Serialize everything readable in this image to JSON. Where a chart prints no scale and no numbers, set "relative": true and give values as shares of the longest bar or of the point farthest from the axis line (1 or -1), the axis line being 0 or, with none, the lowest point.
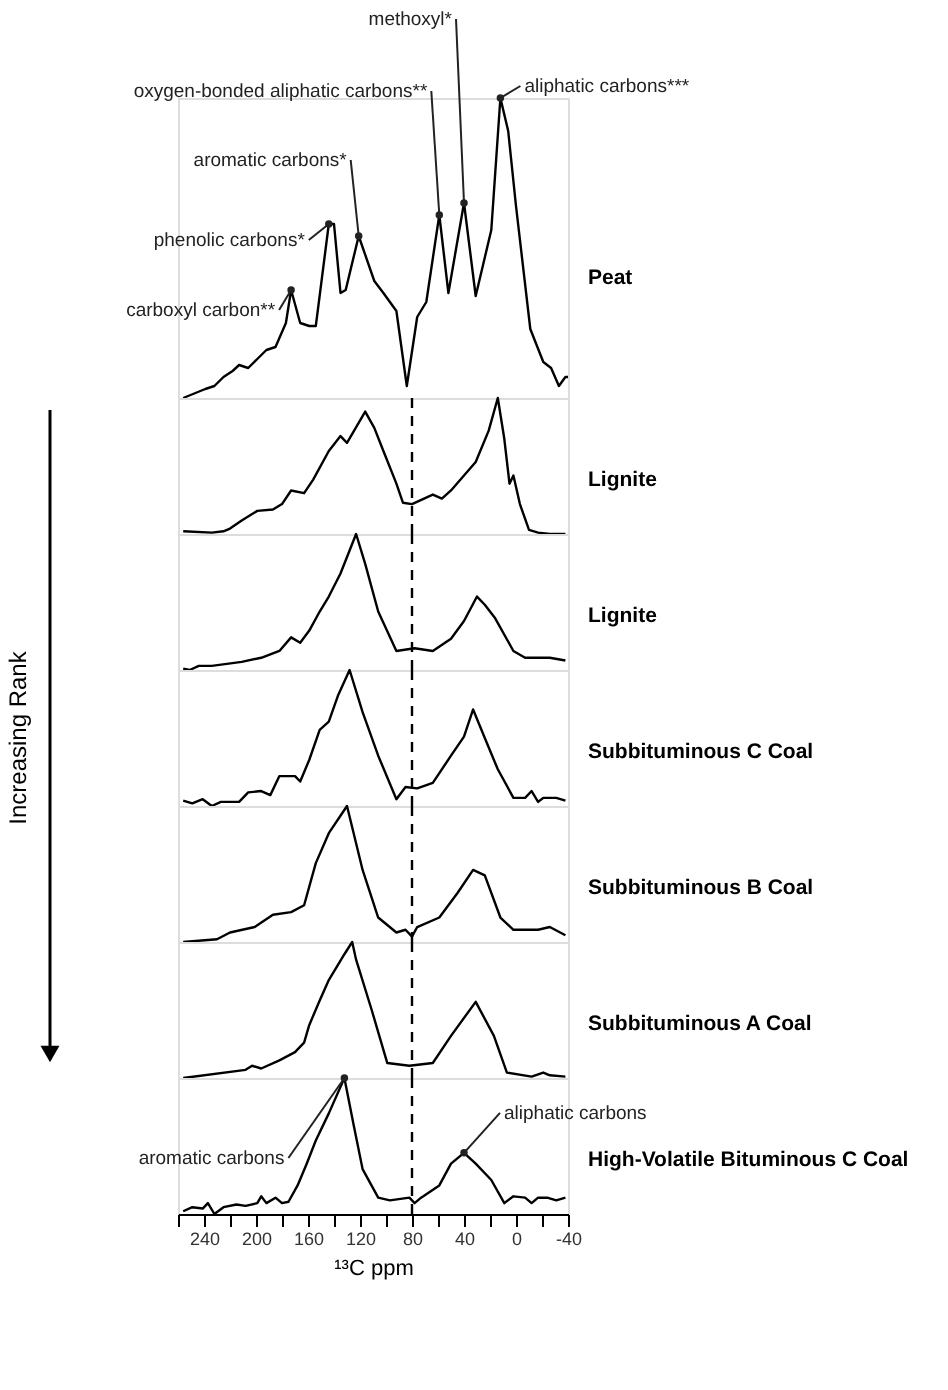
{
  "chart_data": [
    {
      "type": "line",
      "relative": true,
      "xlim": [
        260,
        -40
      ],
      "tick_labels": false,
      "x": [
        256,
        239,
        232,
        225,
        218,
        213,
        206,
        199,
        192,
        185,
        177,
        173,
        166,
        159,
        154,
        144,
        140,
        135,
        131,
        121,
        109,
        102,
        92,
        84,
        76,
        69,
        59,
        52,
        40,
        31,
        19,
        12,
        6,
        0,
        -11,
        -21,
        -27,
        -33,
        -38,
        -40
      ],
      "series": [
        {
          "name": "Peat",
          "color": "#000000",
          "values": [
            0,
            0.03,
            0.04,
            0.07,
            0.09,
            0.11,
            0.1,
            0.13,
            0.16,
            0.17,
            0.25,
            0.36,
            0.25,
            0.24,
            0.24,
            0.58,
            0.58,
            0.35,
            0.36,
            0.54,
            0.39,
            0.35,
            0.29,
            0.04,
            0.27,
            0.32,
            0.61,
            0.35,
            0.65,
            0.34,
            0.56,
            1,
            0.89,
            0.64,
            0.23,
            0.12,
            0.1,
            0.04,
            0.07,
            0.07
          ]
        }
      ],
      "annotations": [
        {
          "text": "carboxyl carbon**",
          "x": 173,
          "y": 0.36
        },
        {
          "text": "phenolic carbons*",
          "x": 144,
          "y": 0.58
        },
        {
          "text": "aromatic carbons*",
          "x": 121,
          "y": 0.54
        },
        {
          "text": "oxygen-bonded aliphatic carbons**",
          "x": 59,
          "y": 0.61
        },
        {
          "text": "methoxyl*",
          "x": 40,
          "y": 0.65
        },
        {
          "text": "aliphatic carbons***",
          "x": 12,
          "y": 1
        }
      ]
    },
    {
      "type": "line",
      "relative": true,
      "xlim": [
        260,
        -40
      ],
      "tick_labels": false,
      "x": [
        256,
        234,
        225,
        220,
        211,
        199,
        187,
        180,
        173,
        163,
        156,
        144,
        135,
        130,
        116,
        109,
        102,
        92,
        87,
        80,
        64,
        57,
        50,
        40,
        31,
        21,
        14,
        9,
        5,
        2,
        -3,
        -10,
        -17,
        -26,
        -38
      ],
      "series": [
        {
          "name": "Lignite",
          "color": "#000000",
          "values": [
            0.02,
            0.01,
            0.02,
            0.04,
            0.1,
            0.17,
            0.18,
            0.22,
            0.32,
            0.3,
            0.4,
            0.61,
            0.72,
            0.67,
            0.9,
            0.78,
            0.61,
            0.37,
            0.23,
            0.22,
            0.29,
            0.26,
            0.32,
            0.43,
            0.53,
            0.76,
            1,
            0.7,
            0.37,
            0.43,
            0.22,
            0.03,
            0.01,
            0,
            0
          ]
        }
      ],
      "ref_lines": [
        {
          "axis": "x",
          "value": 80,
          "color": "#000000",
          "line_style": "dashed"
        }
      ]
    },
    {
      "type": "line",
      "relative": true,
      "xlim": [
        260,
        -40
      ],
      "tick_labels": false,
      "x": [
        256,
        251,
        244,
        234,
        211,
        196,
        182,
        173,
        166,
        159,
        151,
        144,
        135,
        123,
        116,
        106,
        92,
        78,
        64,
        50,
        40,
        30,
        24,
        16,
        2,
        -7,
        -26,
        -38
      ],
      "series": [
        {
          "name": "Lignite",
          "color": "#000000",
          "values": [
            0.01,
            0,
            0.03,
            0.03,
            0.06,
            0.09,
            0.14,
            0.24,
            0.2,
            0.29,
            0.43,
            0.54,
            0.71,
            1,
            0.78,
            0.43,
            0.14,
            0.16,
            0.14,
            0.23,
            0.36,
            0.54,
            0.48,
            0.38,
            0.14,
            0.09,
            0.09,
            0.07
          ]
        }
      ],
      "ref_lines": [
        {
          "axis": "x",
          "value": 80,
          "color": "#000000",
          "line_style": "dashed"
        }
      ]
    },
    {
      "type": "line",
      "relative": true,
      "xlim": [
        260,
        -40
      ],
      "tick_labels": false,
      "x": [
        256,
        249,
        241,
        234,
        227,
        213,
        206,
        196,
        189,
        182,
        170,
        166,
        159,
        151,
        144,
        137,
        128,
        118,
        106,
        92,
        85,
        76,
        64,
        50,
        40,
        33,
        24,
        14,
        2,
        -7,
        -12,
        -17,
        -21,
        -31,
        -38
      ],
      "series": [
        {
          "name": "Subbituminous C Coal",
          "color": "#000000",
          "values": [
            0.04,
            0.02,
            0.05,
            0,
            0.03,
            0.03,
            0.1,
            0.11,
            0.08,
            0.22,
            0.22,
            0.18,
            0.34,
            0.56,
            0.62,
            0.81,
            1,
            0.69,
            0.37,
            0.05,
            0.14,
            0.13,
            0.17,
            0.37,
            0.51,
            0.71,
            0.5,
            0.27,
            0.06,
            0.06,
            0.11,
            0.03,
            0.06,
            0.06,
            0.04
          ]
        }
      ],
      "ref_lines": [
        {
          "axis": "x",
          "value": 80,
          "color": "#000000",
          "line_style": "dashed"
        }
      ],
      "annotations": [
        "Increasing Rank"
      ]
    },
    {
      "type": "line",
      "relative": true,
      "xlim": [
        260,
        -40
      ],
      "tick_labels": false,
      "x": [
        256,
        230,
        220,
        201,
        187,
        173,
        163,
        154,
        144,
        130,
        118,
        106,
        92,
        85,
        80,
        76,
        59,
        45,
        33,
        24,
        12,
        2,
        -17,
        -26,
        -38
      ],
      "series": [
        {
          "name": "Subbituminous B Coal",
          "color": "#000000",
          "values": [
            0,
            0.02,
            0.07,
            0.11,
            0.2,
            0.22,
            0.27,
            0.58,
            0.8,
            1,
            0.53,
            0.18,
            0.07,
            0.09,
            0.04,
            0.11,
            0.18,
            0.36,
            0.53,
            0.49,
            0.18,
            0.09,
            0.09,
            0.11,
            0.05
          ]
        }
      ],
      "ref_lines": [
        {
          "axis": "x",
          "value": 80,
          "color": "#000000",
          "line_style": "dashed"
        }
      ]
    },
    {
      "type": "line",
      "relative": true,
      "xlim": [
        260,
        -40
      ],
      "tick_labels": false,
      "x": [
        256,
        208,
        203,
        196,
        182,
        170,
        163,
        159,
        151,
        144,
        132,
        126,
        123,
        111,
        99,
        82,
        64,
        50,
        31,
        17,
        7,
        -12,
        -21,
        -26,
        -38
      ],
      "series": [
        {
          "name": "Subbituminous A Coal",
          "color": "#000000",
          "values": [
            0,
            0.06,
            0.09,
            0.07,
            0.13,
            0.19,
            0.26,
            0.39,
            0.57,
            0.72,
            0.91,
            1,
            0.87,
            0.5,
            0.11,
            0.09,
            0.11,
            0.31,
            0.56,
            0.31,
            0.04,
            0.01,
            0.04,
            0.02,
            0.01
          ]
        }
      ],
      "ref_lines": [
        {
          "axis": "x",
          "value": 80,
          "color": "#000000",
          "line_style": "dashed"
        }
      ]
    },
    {
      "type": "line",
      "relative": true,
      "xlim": [
        260,
        -40
      ],
      "tick_labels": "x",
      "xlabel": "¹³C ppm",
      "xticks": [
        {
          "value": 260,
          "label": null
        },
        240,
        {
          "value": 220,
          "label": null
        },
        200,
        {
          "value": 180,
          "label": null
        },
        160,
        {
          "value": 140,
          "label": null
        },
        120,
        {
          "value": 100,
          "label": null
        },
        80,
        {
          "value": 60,
          "label": null
        },
        40,
        {
          "value": 20,
          "label": null
        },
        0,
        {
          "value": -20,
          "label": null
        },
        -40
      ],
      "x": [
        256,
        249,
        241,
        237,
        232,
        225,
        215,
        208,
        199,
        196,
        192,
        185,
        180,
        175,
        168,
        161,
        154,
        144,
        132,
        125,
        118,
        106,
        97,
        82,
        78,
        73,
        59,
        50,
        40,
        31,
        19,
        9,
        2,
        -7,
        -12,
        -17,
        -24,
        -31,
        -38
      ],
      "series": [
        {
          "name": "High-Volatile Bituminous C Coal",
          "color": "#000000",
          "values": [
            0.02,
            0.05,
            0.04,
            0.08,
            0,
            0.05,
            0.07,
            0.06,
            0.08,
            0.13,
            0.08,
            0.12,
            0.08,
            0.09,
            0.21,
            0.37,
            0.54,
            0.74,
            1,
            0.66,
            0.33,
            0.12,
            0.1,
            0.12,
            0.08,
            0.12,
            0.21,
            0.37,
            0.45,
            0.37,
            0.25,
            0.08,
            0.13,
            0.12,
            0.08,
            0.12,
            0.12,
            0.1,
            0.12
          ]
        }
      ],
      "ref_lines": [
        {
          "axis": "x",
          "value": 80,
          "color": "#000000",
          "line_style": "dashed"
        }
      ],
      "annotations": [
        {
          "text": "aromatic carbons",
          "x": 132,
          "y": 1
        },
        {
          "text": "aliphatic carbons",
          "x": 40,
          "y": 0.45
        }
      ]
    }
  ]
}
